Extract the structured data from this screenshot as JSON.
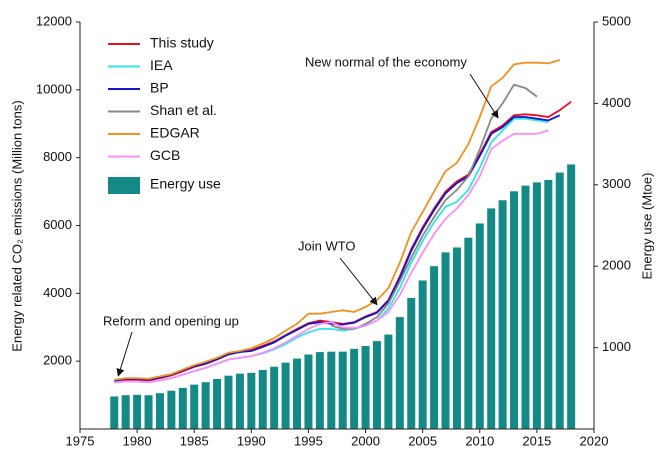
{
  "chart_data": {
    "type": "line",
    "y_label": "Energy related CO₂ emissions (Million tons)",
    "y2_label": "Energy use (Mtoe)",
    "xlim": [
      1975,
      2020
    ],
    "xticks": [
      1975,
      1980,
      1985,
      1990,
      1995,
      2000,
      2005,
      2010,
      2015,
      2020
    ],
    "ylim": [
      0,
      12000
    ],
    "yticks": [
      2000,
      4000,
      6000,
      8000,
      10000,
      12000
    ],
    "y2lim": [
      0,
      5000
    ],
    "y2ticks": [
      1000,
      2000,
      3000,
      4000,
      5000
    ],
    "grid": false,
    "legend": "upper left",
    "x": [
      1978,
      1979,
      1980,
      1981,
      1982,
      1983,
      1984,
      1985,
      1986,
      1987,
      1988,
      1989,
      1990,
      1991,
      1992,
      1993,
      1994,
      1995,
      1996,
      1997,
      1998,
      1999,
      2000,
      2001,
      2002,
      2003,
      2004,
      2005,
      2006,
      2007,
      2008,
      2009,
      2010,
      2011,
      2012,
      2013,
      2014,
      2015,
      2016,
      2017,
      2018
    ],
    "series": [
      {
        "name": "This study",
        "color": "#e8101e",
        "values": [
          1400,
          1450,
          1450,
          1430,
          1500,
          1580,
          1700,
          1830,
          1920,
          2050,
          2200,
          2270,
          2330,
          2450,
          2580,
          2770,
          2950,
          3120,
          3200,
          3150,
          3100,
          3150,
          3320,
          3450,
          3800,
          4500,
          5300,
          5950,
          6500,
          7000,
          7300,
          7500,
          8100,
          8750,
          8950,
          9250,
          9280,
          9250,
          9200,
          9400,
          9650
        ]
      },
      {
        "name": "IEA",
        "color": "#2ee6e6",
        "values": [
          1380,
          1400,
          1400,
          1380,
          1430,
          1500,
          1600,
          1700,
          1800,
          1930,
          2050,
          2100,
          2150,
          2230,
          2350,
          2500,
          2700,
          2850,
          2950,
          2950,
          2900,
          2950,
          3050,
          3200,
          3550,
          4150,
          4900,
          5550,
          6100,
          6550,
          6700,
          7050,
          7700,
          8450,
          8800,
          9150,
          9150,
          9100,
          9050,
          null,
          null
        ]
      },
      {
        "name": "BP",
        "color": "#1414c8",
        "values": [
          1420,
          1480,
          1480,
          1450,
          1520,
          1600,
          1730,
          1850,
          1930,
          2060,
          2200,
          2270,
          2300,
          2420,
          2550,
          2750,
          2920,
          3100,
          3150,
          3100,
          3080,
          3130,
          3300,
          3430,
          3780,
          4450,
          5250,
          5900,
          6450,
          6950,
          7250,
          7450,
          8050,
          8700,
          8900,
          9200,
          9200,
          9150,
          9100,
          9250,
          null
        ]
      },
      {
        "name": "Shan et al.",
        "color": "#888888",
        "values": [
          null,
          null,
          null,
          null,
          null,
          null,
          null,
          null,
          null,
          null,
          null,
          null,
          null,
          null,
          null,
          null,
          null,
          null,
          null,
          3050,
          2950,
          2950,
          3100,
          3300,
          3700,
          4350,
          5050,
          5700,
          6250,
          6750,
          7050,
          7450,
          8250,
          9150,
          9600,
          10150,
          10050,
          9800,
          null,
          null,
          null
        ]
      },
      {
        "name": "EDGAR",
        "color": "#f39020",
        "values": [
          1450,
          1500,
          1500,
          1480,
          1550,
          1620,
          1750,
          1880,
          1980,
          2100,
          2250,
          2300,
          2380,
          2520,
          2680,
          2900,
          3100,
          3400,
          3400,
          3450,
          3500,
          3450,
          3600,
          3800,
          4150,
          4900,
          5800,
          6400,
          7000,
          7600,
          7850,
          8400,
          9200,
          10100,
          10350,
          10750,
          10800,
          10800,
          10780,
          10880,
          null
        ]
      },
      {
        "name": "GCB",
        "color": "#ff8cff",
        "values": [
          1370,
          1400,
          1400,
          1380,
          1430,
          1500,
          1600,
          1710,
          1800,
          1920,
          2050,
          2100,
          2150,
          2250,
          2380,
          2550,
          2750,
          2950,
          3100,
          3150,
          3000,
          2980,
          3050,
          3200,
          3450,
          3950,
          4600,
          5200,
          5750,
          6200,
          6500,
          6900,
          7450,
          8250,
          8500,
          8700,
          8700,
          8700,
          8800,
          null,
          null
        ]
      },
      {
        "name": "Energy use",
        "type": "bar",
        "axis": "y2",
        "color": "#138a85",
        "values": [
          400,
          415,
          420,
          415,
          440,
          470,
          505,
          545,
          575,
          615,
          655,
          680,
          690,
          725,
          765,
          815,
          865,
          915,
          945,
          950,
          950,
          985,
          1020,
          1080,
          1160,
          1375,
          1610,
          1825,
          2000,
          2170,
          2230,
          2350,
          2525,
          2710,
          2810,
          2920,
          2990,
          3030,
          3060,
          3150,
          3250
        ]
      }
    ],
    "annotations": [
      {
        "text": "Reform and opening up"
      },
      {
        "text": "Join WTO"
      },
      {
        "text": "New normal of the economy"
      }
    ]
  }
}
